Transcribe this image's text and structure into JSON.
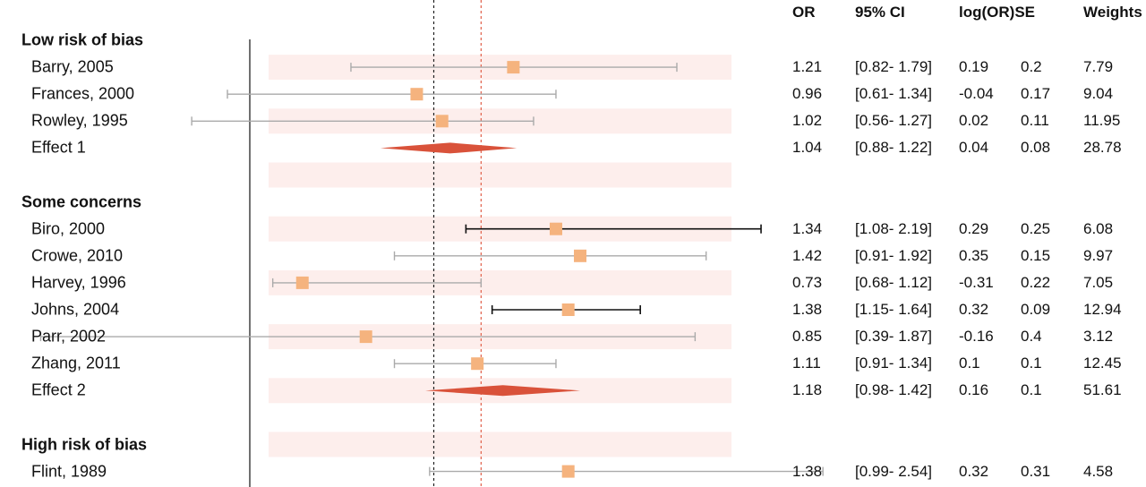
{
  "chart_data": {
    "type": "forest",
    "x_scale": "log",
    "columns": [
      "OR",
      "95% CI",
      "log(OR)SE",
      "Weights"
    ],
    "reference_lines": [
      {
        "name": "null",
        "value": 1.0,
        "style": "dotted",
        "color": "#222222"
      },
      {
        "name": "overall",
        "value": 1.12,
        "style": "dotted",
        "color": "#e0604a"
      }
    ],
    "groups": [
      {
        "label": "Low risk of bias",
        "studies": [
          {
            "label": "Barry, 2005",
            "or": 1.21,
            "lo": 0.82,
            "hi": 1.79,
            "or_text": "1.21",
            "ci_text": "[0.82- 1.79]",
            "log_text": "0.19",
            "se_text": "0.2",
            "weight_text": "7.79",
            "highlight": false
          },
          {
            "label": "Frances, 2000",
            "or": 0.96,
            "lo": 0.61,
            "hi": 1.34,
            "or_text": "0.96",
            "ci_text": "[0.61- 1.34]",
            "log_text": "-0.04",
            "se_text": "0.17",
            "weight_text": "9.04",
            "highlight": false
          },
          {
            "label": "Rowley, 1995",
            "or": 1.02,
            "lo": 0.56,
            "hi": 1.27,
            "or_text": "1.02",
            "ci_text": "[0.56- 1.27]",
            "log_text": "0.02",
            "se_text": "0.11",
            "weight_text": "11.95",
            "highlight": false
          }
        ],
        "effect": {
          "label": "Effect 1",
          "or": 1.04,
          "lo": 0.88,
          "hi": 1.22,
          "or_text": "1.04",
          "ci_text": "[0.88- 1.22]",
          "log_text": "0.04",
          "se_text": "0.08",
          "weight_text": "28.78"
        }
      },
      {
        "label": "Some concerns",
        "studies": [
          {
            "label": "Biro, 2000",
            "or": 1.34,
            "lo": 1.08,
            "hi": 2.19,
            "or_text": "1.34",
            "ci_text": "[1.08- 2.19]",
            "log_text": "0.29",
            "se_text": "0.25",
            "weight_text": "6.08",
            "highlight": true
          },
          {
            "label": "Crowe, 2010",
            "or": 1.42,
            "lo": 0.91,
            "hi": 1.92,
            "or_text": "1.42",
            "ci_text": "[0.91- 1.92]",
            "log_text": "0.35",
            "se_text": "0.15",
            "weight_text": "9.97",
            "highlight": false
          },
          {
            "label": "Harvey, 1996",
            "or": 0.73,
            "lo": 0.68,
            "hi": 1.12,
            "or_text": "0.73",
            "ci_text": "[0.68- 1.12]",
            "log_text": "-0.31",
            "se_text": "0.22",
            "weight_text": "7.05",
            "highlight": false
          },
          {
            "label": "Johns, 2004",
            "or": 1.38,
            "lo": 1.15,
            "hi": 1.64,
            "or_text": "1.38",
            "ci_text": "[1.15- 1.64]",
            "log_text": "0.32",
            "se_text": "0.09",
            "weight_text": "12.94",
            "highlight": true
          },
          {
            "label": "Parr, 2002",
            "or": 0.85,
            "lo": 0.39,
            "hi": 1.87,
            "or_text": "0.85",
            "ci_text": "[0.39- 1.87]",
            "log_text": "-0.16",
            "se_text": "0.4",
            "weight_text": "3.12",
            "highlight": false
          },
          {
            "label": "Zhang, 2011",
            "or": 1.11,
            "lo": 0.91,
            "hi": 1.34,
            "or_text": "1.11",
            "ci_text": "[0.91- 1.34]",
            "log_text": "0.1",
            "se_text": "0.1",
            "weight_text": "12.45",
            "highlight": false
          }
        ],
        "effect": {
          "label": "Effect 2",
          "or": 1.18,
          "lo": 0.98,
          "hi": 1.42,
          "or_text": "1.18",
          "ci_text": "[0.98- 1.42]",
          "log_text": "0.16",
          "se_text": "0.1",
          "weight_text": "51.61"
        }
      },
      {
        "label": "High risk of bias",
        "studies": [
          {
            "label": "Flint, 1989",
            "or": 1.38,
            "lo": 0.99,
            "hi": 2.54,
            "or_text": "1.38",
            "ci_text": "[0.99- 2.54]",
            "log_text": "0.32",
            "se_text": "0.31",
            "weight_text": "4.58",
            "highlight": false
          }
        ],
        "effect": null
      }
    ],
    "colors": {
      "stripe": "#fdeeec",
      "marker": "#f5b37e",
      "diamond": "#d9523a",
      "ci_muted": "#aaaaaa",
      "ci_highlight": "#111111",
      "axis": "#222222"
    }
  }
}
